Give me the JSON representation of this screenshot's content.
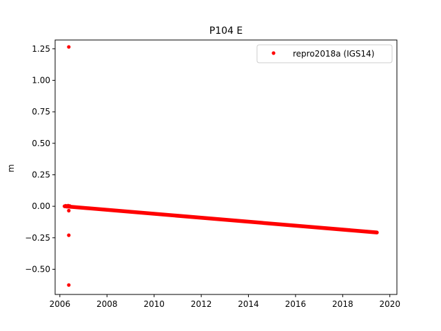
{
  "chart_data": {
    "type": "scatter",
    "title": "P104 E",
    "xlabel": "",
    "ylabel": "m",
    "xlim": [
      2005.8,
      2020.3
    ],
    "ylim": [
      -0.7,
      1.32
    ],
    "xticks": [
      2006,
      2008,
      2010,
      2012,
      2014,
      2016,
      2018,
      2020
    ],
    "xtick_labels": [
      "2006",
      "2008",
      "2010",
      "2012",
      "2014",
      "2016",
      "2018",
      "2020"
    ],
    "yticks": [
      1.25,
      1.0,
      0.75,
      0.5,
      0.25,
      0.0,
      -0.25,
      -0.5
    ],
    "ytick_labels": [
      "1.25",
      "1.00",
      "0.75",
      "0.50",
      "0.25",
      "0.00",
      "−0.25",
      "−0.50"
    ],
    "grid": false,
    "legend_position": "top-right",
    "series": [
      {
        "name": "repro2018a (IGS14)",
        "color": "#ff0000",
        "marker": "circle",
        "trend": {
          "x_start": 2006.2,
          "x_end": 2019.45,
          "y_start": 0.0,
          "y_end": -0.208
        },
        "points": [
          {
            "x": 2006.38,
            "y": 1.265
          },
          {
            "x": 2006.38,
            "y": -0.035
          },
          {
            "x": 2006.38,
            "y": -0.23
          },
          {
            "x": 2006.38,
            "y": -0.625
          },
          {
            "x": 2006.25,
            "y": 0.004
          },
          {
            "x": 2006.3,
            "y": -0.003
          },
          {
            "x": 2006.35,
            "y": 0.005
          },
          {
            "x": 2006.42,
            "y": 0.002
          }
        ]
      }
    ]
  }
}
